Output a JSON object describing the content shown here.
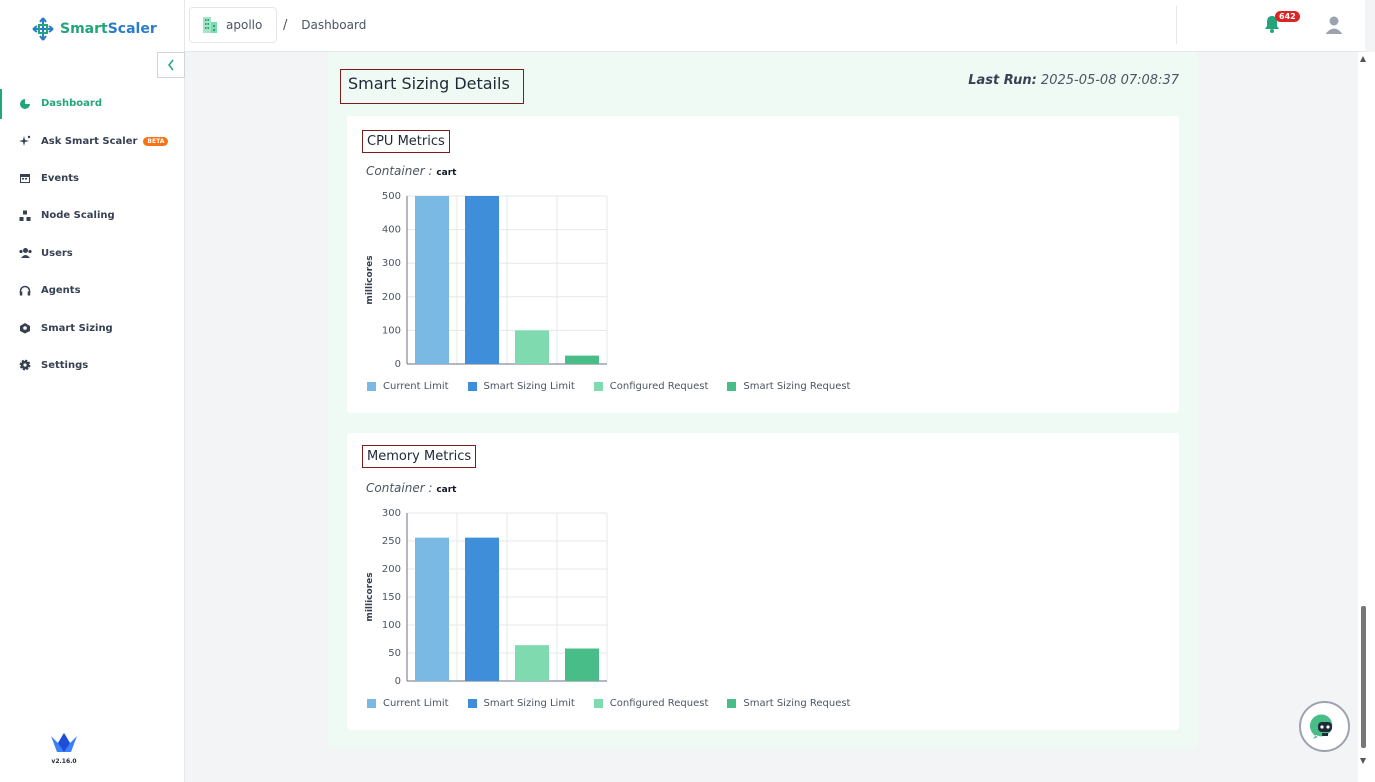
{
  "app": {
    "brand_part1": "Smart",
    "brand_part2": "Scaler",
    "version": "v2.16.0"
  },
  "sidebar": {
    "items": [
      {
        "label": "Dashboard",
        "icon": "pie-chart-icon",
        "active": true
      },
      {
        "label": "Ask Smart Scaler",
        "icon": "sparkle-icon",
        "badge": "BETA"
      },
      {
        "label": "Events",
        "icon": "calendar-icon"
      },
      {
        "label": "Node Scaling",
        "icon": "nodes-icon"
      },
      {
        "label": "Users",
        "icon": "users-icon"
      },
      {
        "label": "Agents",
        "icon": "headset-icon"
      },
      {
        "label": "Smart Sizing",
        "icon": "smart-sizing-icon"
      },
      {
        "label": "Settings",
        "icon": "gear-icon"
      }
    ]
  },
  "header": {
    "cluster": "apollo",
    "breadcrumb_sep": "/",
    "breadcrumb": "Dashboard",
    "notification_count": "642"
  },
  "main": {
    "title": "Smart Sizing Details",
    "last_run_label": "Last Run:",
    "last_run_value": "2025-05-08 07:08:37"
  },
  "cards": [
    {
      "title": "CPU Metrics",
      "container_label": "Container :",
      "container_value": "cart"
    },
    {
      "title": "Memory Metrics",
      "container_label": "Container :",
      "container_value": "cart"
    }
  ],
  "colors": {
    "accent": "#22a57a",
    "current_limit": "#7ab9e4",
    "smart_sizing_limit": "#3f8ed9",
    "configured_request": "#7fdab0",
    "smart_sizing_request": "#48bd88"
  },
  "chart_data": [
    {
      "type": "bar",
      "categories": [
        "Current Limit",
        "Smart Sizing Limit",
        "Configured Request",
        "Smart Sizing Request"
      ],
      "values": [
        500,
        500,
        100,
        25
      ],
      "ylabel": "millicores",
      "ylim": [
        0,
        500
      ],
      "yticks": [
        "0",
        "100",
        "200",
        "300",
        "400",
        "500"
      ],
      "ytick_values": [
        0,
        100,
        200,
        300,
        400,
        500
      ],
      "legend": [
        "Current Limit",
        "Smart Sizing Limit",
        "Configured Request",
        "Smart Sizing Request"
      ],
      "legend_position": "bottom",
      "grid": true
    },
    {
      "type": "bar",
      "categories": [
        "Current Limit",
        "Smart Sizing Limit",
        "Configured Request",
        "Smart Sizing Request"
      ],
      "values": [
        256,
        256,
        64,
        58
      ],
      "ylabel": "millicores",
      "ylim": [
        0,
        300
      ],
      "yticks": [
        "0",
        "50",
        "100",
        "150",
        "200",
        "250",
        "300"
      ],
      "ytick_values": [
        0,
        50,
        100,
        150,
        200,
        250,
        300
      ],
      "legend": [
        "Current Limit",
        "Smart Sizing Limit",
        "Configured Request",
        "Smart Sizing Request"
      ],
      "legend_position": "bottom",
      "grid": true
    }
  ]
}
